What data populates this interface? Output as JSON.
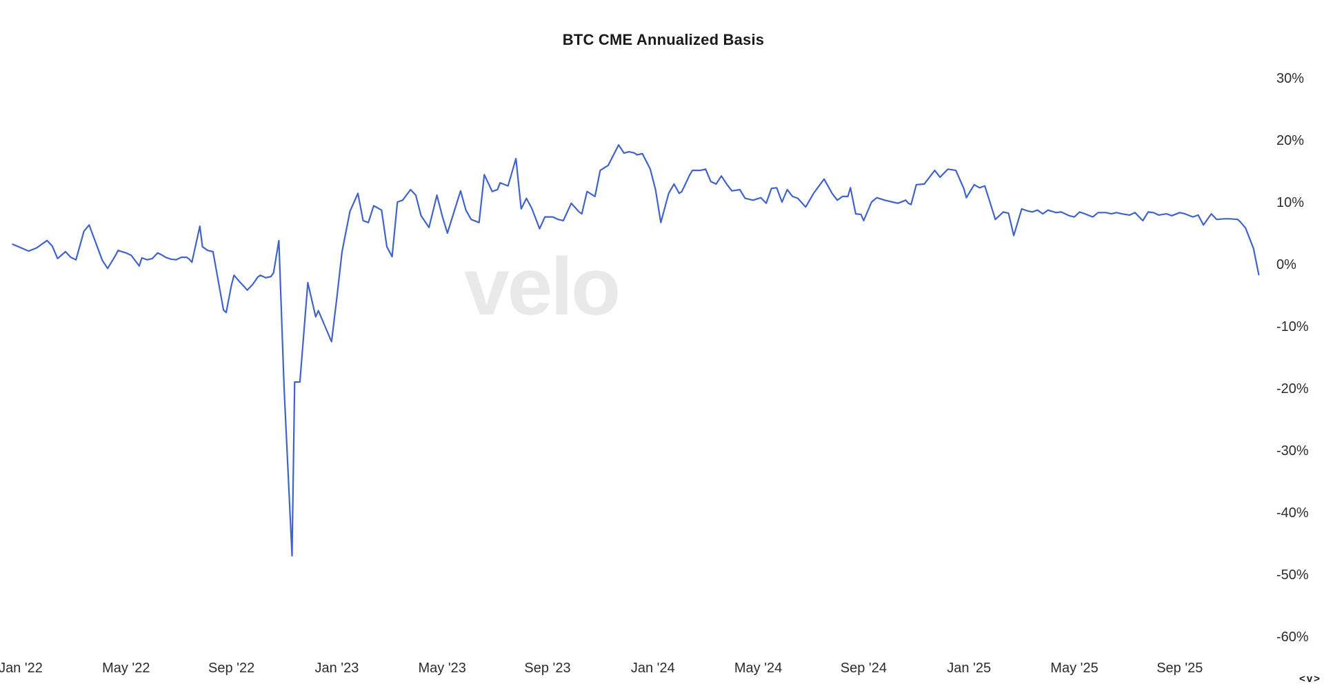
{
  "title": "BTC CME Annualized Basis",
  "watermark": "velo",
  "corner_mark": "<v>",
  "colors": {
    "background": "#ffffff",
    "line": "#3f63c8",
    "watermark": "#e9e9e9",
    "text": "#2b2b2b"
  },
  "chart_data": {
    "type": "line",
    "title": "BTC CME Annualized Basis",
    "xlabel": "",
    "ylabel": "",
    "grid": false,
    "legend": false,
    "x_unit": "months since Jan 2022",
    "ylim": [
      -62,
      32
    ],
    "y_ticks": [
      {
        "label": "30%",
        "v": 30
      },
      {
        "label": "20%",
        "v": 20
      },
      {
        "label": "10%",
        "v": 10
      },
      {
        "label": "0%",
        "v": 0
      },
      {
        "label": "-10%",
        "v": -10
      },
      {
        "label": "-20%",
        "v": -20
      },
      {
        "label": "-30%",
        "v": -30
      },
      {
        "label": "-40%",
        "v": -40
      },
      {
        "label": "-50%",
        "v": -50
      },
      {
        "label": "-60%",
        "v": -60
      }
    ],
    "x_ticks": [
      {
        "label": "Jan '22",
        "m": 0
      },
      {
        "label": "May '22",
        "m": 4
      },
      {
        "label": "Sep '22",
        "m": 8
      },
      {
        "label": "Jan '23",
        "m": 12
      },
      {
        "label": "May '23",
        "m": 16
      },
      {
        "label": "Sep '23",
        "m": 20
      },
      {
        "label": "Jan '24",
        "m": 24
      },
      {
        "label": "May '24",
        "m": 28
      },
      {
        "label": "Sep '24",
        "m": 32
      },
      {
        "label": "Jan '25",
        "m": 36
      },
      {
        "label": "May '25",
        "m": 40
      },
      {
        "label": "Sep '25",
        "m": 44
      }
    ],
    "series": [
      {
        "name": "BTC CME annualized basis (%)",
        "color": "#3f63c8",
        "points": [
          [
            -0.3,
            3.2
          ],
          [
            0.3,
            2.1
          ],
          [
            0.6,
            2.6
          ],
          [
            1,
            3.8
          ],
          [
            1.2,
            2.9
          ],
          [
            1.4,
            0.9
          ],
          [
            1.7,
            2
          ],
          [
            1.9,
            1.1
          ],
          [
            2.1,
            0.7
          ],
          [
            2.4,
            5.3
          ],
          [
            2.6,
            6.3
          ],
          [
            2.8,
            4
          ],
          [
            3.1,
            0.6
          ],
          [
            3.3,
            -0.7
          ],
          [
            3.6,
            1.4
          ],
          [
            3.7,
            2.2
          ],
          [
            4,
            1.8
          ],
          [
            4.2,
            1.4
          ],
          [
            4.5,
            -0.3
          ],
          [
            4.6,
            1
          ],
          [
            4.8,
            0.7
          ],
          [
            5,
            0.9
          ],
          [
            5.2,
            1.8
          ],
          [
            5.3,
            1.6
          ],
          [
            5.5,
            1.1
          ],
          [
            5.7,
            0.8
          ],
          [
            5.9,
            0.7
          ],
          [
            6.1,
            1.1
          ],
          [
            6.3,
            1.1
          ],
          [
            6.4,
            0.8
          ],
          [
            6.5,
            0.3
          ],
          [
            6.8,
            6.1
          ],
          [
            6.9,
            2.8
          ],
          [
            7.1,
            2.2
          ],
          [
            7.3,
            2
          ],
          [
            7.5,
            -2.7
          ],
          [
            7.7,
            -7.4
          ],
          [
            7.8,
            -7.8
          ],
          [
            8,
            -3.4
          ],
          [
            8.1,
            -1.8
          ],
          [
            8.3,
            -2.8
          ],
          [
            8.5,
            -3.7
          ],
          [
            8.6,
            -4.2
          ],
          [
            8.8,
            -3.3
          ],
          [
            9,
            -2.1
          ],
          [
            9.1,
            -1.8
          ],
          [
            9.2,
            -2
          ],
          [
            9.3,
            -2.2
          ],
          [
            9.5,
            -2
          ],
          [
            9.6,
            -1.4
          ],
          [
            9.8,
            3.8
          ],
          [
            10,
            -20
          ],
          [
            10.3,
            -47
          ],
          [
            10.4,
            -19
          ],
          [
            10.6,
            -19
          ],
          [
            10.9,
            -3
          ],
          [
            11.2,
            -8.5
          ],
          [
            11.3,
            -7.5
          ],
          [
            11.5,
            -9.5
          ],
          [
            11.8,
            -12.5
          ],
          [
            12,
            -5.5
          ],
          [
            12.2,
            2
          ],
          [
            12.5,
            8.5
          ],
          [
            12.8,
            11.4
          ],
          [
            13,
            7
          ],
          [
            13.2,
            6.7
          ],
          [
            13.4,
            9.4
          ],
          [
            13.7,
            8.7
          ],
          [
            13.9,
            2.8
          ],
          [
            14.1,
            1.2
          ],
          [
            14.3,
            10
          ],
          [
            14.5,
            10.3
          ],
          [
            14.8,
            12
          ],
          [
            15,
            11.1
          ],
          [
            15.2,
            7.8
          ],
          [
            15.5,
            5.9
          ],
          [
            15.8,
            11.1
          ],
          [
            16,
            7.8
          ],
          [
            16.2,
            5
          ],
          [
            16.7,
            11.8
          ],
          [
            16.9,
            8.7
          ],
          [
            17.1,
            7.2
          ],
          [
            17.4,
            6.7
          ],
          [
            17.6,
            14.4
          ],
          [
            17.9,
            11.7
          ],
          [
            18.1,
            12
          ],
          [
            18.2,
            13.1
          ],
          [
            18.5,
            12.6
          ],
          [
            18.8,
            17
          ],
          [
            19,
            8.9
          ],
          [
            19.2,
            10.6
          ],
          [
            19.4,
            9
          ],
          [
            19.7,
            5.7
          ],
          [
            19.9,
            7.6
          ],
          [
            20.2,
            7.6
          ],
          [
            20.4,
            7.2
          ],
          [
            20.6,
            7
          ],
          [
            20.9,
            9.8
          ],
          [
            21.2,
            8.4
          ],
          [
            21.3,
            8.1
          ],
          [
            21.5,
            11.7
          ],
          [
            21.8,
            10.9
          ],
          [
            22,
            15.1
          ],
          [
            22.3,
            15.9
          ],
          [
            22.7,
            19.2
          ],
          [
            22.9,
            17.9
          ],
          [
            23.1,
            18.1
          ],
          [
            23.3,
            17.9
          ],
          [
            23.4,
            17.6
          ],
          [
            23.6,
            17.8
          ],
          [
            23.9,
            15.3
          ],
          [
            24.1,
            12
          ],
          [
            24.3,
            6.7
          ],
          [
            24.6,
            11.4
          ],
          [
            24.8,
            12.9
          ],
          [
            25,
            11.4
          ],
          [
            25.1,
            11.7
          ],
          [
            25.4,
            14.4
          ],
          [
            25.5,
            15.1
          ],
          [
            25.8,
            15.1
          ],
          [
            26,
            15.3
          ],
          [
            26.2,
            13.3
          ],
          [
            26.4,
            12.9
          ],
          [
            26.6,
            14.2
          ],
          [
            26.8,
            12.9
          ],
          [
            27,
            11.8
          ],
          [
            27.3,
            12
          ],
          [
            27.5,
            10.6
          ],
          [
            27.8,
            10.3
          ],
          [
            28.1,
            10.7
          ],
          [
            28.3,
            9.8
          ],
          [
            28.5,
            12.2
          ],
          [
            28.7,
            12.3
          ],
          [
            28.9,
            10
          ],
          [
            29.1,
            12
          ],
          [
            29.3,
            10.9
          ],
          [
            29.5,
            10.6
          ],
          [
            29.8,
            9.2
          ],
          [
            30.1,
            11.4
          ],
          [
            30.5,
            13.7
          ],
          [
            30.8,
            11.4
          ],
          [
            31,
            10.3
          ],
          [
            31.2,
            10.9
          ],
          [
            31.4,
            10.9
          ],
          [
            31.5,
            12.3
          ],
          [
            31.7,
            8.1
          ],
          [
            31.9,
            8
          ],
          [
            32,
            7
          ],
          [
            32.3,
            10
          ],
          [
            32.5,
            10.7
          ],
          [
            32.8,
            10.3
          ],
          [
            33.1,
            10
          ],
          [
            33.3,
            9.8
          ],
          [
            33.6,
            10.3
          ],
          [
            33.7,
            9.8
          ],
          [
            33.8,
            9.6
          ],
          [
            34,
            12.8
          ],
          [
            34.3,
            12.9
          ],
          [
            34.7,
            15.1
          ],
          [
            34.9,
            14
          ],
          [
            35.2,
            15.3
          ],
          [
            35.5,
            15.1
          ],
          [
            35.8,
            12.2
          ],
          [
            35.9,
            10.7
          ],
          [
            36.2,
            12.8
          ],
          [
            36.4,
            12.3
          ],
          [
            36.6,
            12.6
          ],
          [
            36.8,
            9.9
          ],
          [
            37,
            7.2
          ],
          [
            37.3,
            8.4
          ],
          [
            37.5,
            8.2
          ],
          [
            37.7,
            4.6
          ],
          [
            38,
            8.9
          ],
          [
            38.2,
            8.6
          ],
          [
            38.4,
            8.4
          ],
          [
            38.6,
            8.7
          ],
          [
            38.8,
            8.1
          ],
          [
            39,
            8.7
          ],
          [
            39.3,
            8.3
          ],
          [
            39.5,
            8.4
          ],
          [
            39.8,
            7.8
          ],
          [
            40,
            7.6
          ],
          [
            40.2,
            8.4
          ],
          [
            40.4,
            8.1
          ],
          [
            40.7,
            7.6
          ],
          [
            40.9,
            8.3
          ],
          [
            41.2,
            8.3
          ],
          [
            41.4,
            8.1
          ],
          [
            41.6,
            8.3
          ],
          [
            41.8,
            8.1
          ],
          [
            42.1,
            7.9
          ],
          [
            42.3,
            8.3
          ],
          [
            42.6,
            7
          ],
          [
            42.8,
            8.4
          ],
          [
            43,
            8.3
          ],
          [
            43.2,
            7.9
          ],
          [
            43.5,
            8.1
          ],
          [
            43.7,
            7.8
          ],
          [
            44,
            8.3
          ],
          [
            44.2,
            8.1
          ],
          [
            44.5,
            7.6
          ],
          [
            44.7,
            7.9
          ],
          [
            44.9,
            6.3
          ],
          [
            45.2,
            8.1
          ],
          [
            45.4,
            7.2
          ],
          [
            45.7,
            7.3
          ],
          [
            45.9,
            7.3
          ],
          [
            46.2,
            7.2
          ],
          [
            46.3,
            6.8
          ],
          [
            46.5,
            5.8
          ],
          [
            46.8,
            2.5
          ],
          [
            47,
            -1.7
          ]
        ]
      }
    ]
  }
}
